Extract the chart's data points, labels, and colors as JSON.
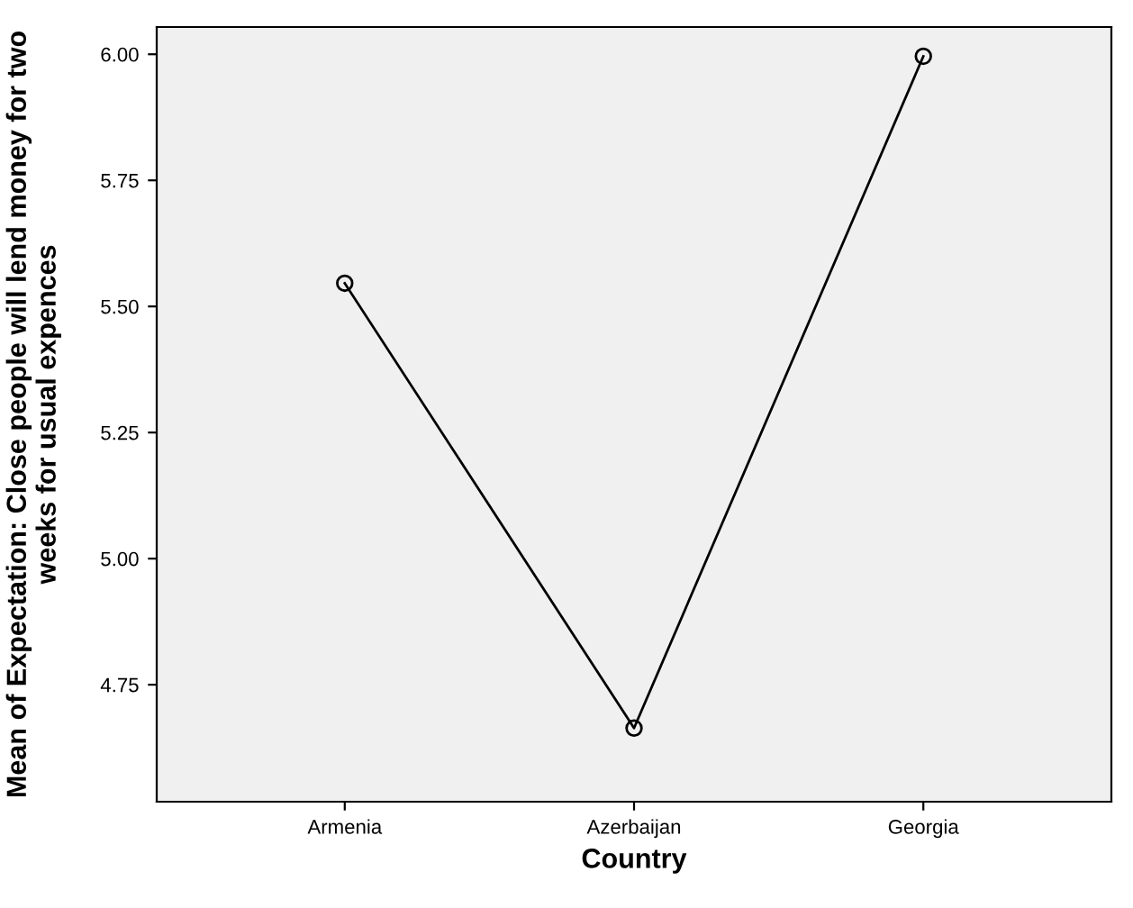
{
  "chart_data": {
    "type": "line",
    "xlabel": "Country",
    "ylabel": "Mean of Expectation: Close people will lend money for two weeks for usual expences",
    "categories": [
      "Armenia",
      "Azerbaijan",
      "Georgia"
    ],
    "series": [
      {
        "color": "#000000",
        "values": [
          5.546,
          4.664,
          5.996
        ]
      }
    ],
    "ylim": [
      4.518,
      6.054
    ],
    "yticks": [
      {
        "value": 4.75,
        "label": "4.75"
      },
      {
        "value": 5.0,
        "label": "5.00"
      },
      {
        "value": 5.25,
        "label": "5.25"
      },
      {
        "value": 5.5,
        "label": "5.50"
      },
      {
        "value": 5.75,
        "label": "5.75"
      },
      {
        "value": 6.0,
        "label": "6.00"
      }
    ],
    "grid": false,
    "legend": false,
    "marker": "circle",
    "line_style": "solid"
  }
}
